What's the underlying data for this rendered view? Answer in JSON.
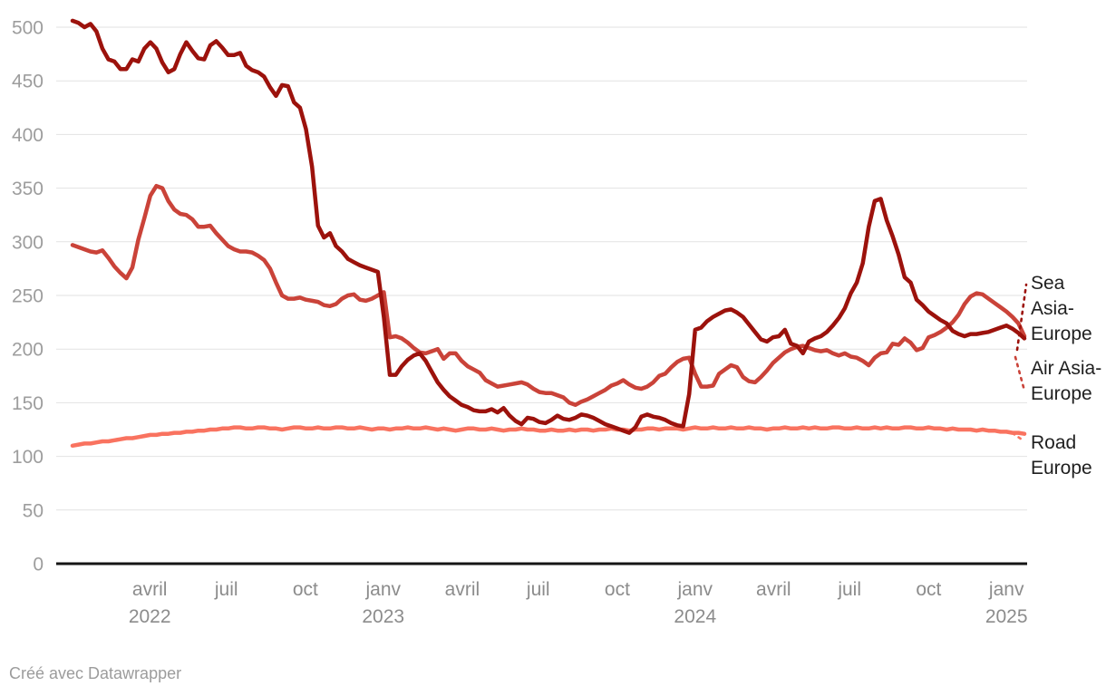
{
  "chart_data": {
    "type": "line",
    "title": "",
    "grid": true,
    "legend_position": "right-edge-direct-labels",
    "y_axis": {
      "range": [
        0,
        500
      ],
      "ticks": [
        0,
        50,
        100,
        150,
        200,
        250,
        300,
        350,
        400,
        450,
        500
      ]
    },
    "x_axis": {
      "range_note": "weekly data, Jan 2022 - Jan/Feb 2025",
      "ticks": [
        {
          "label": "avril",
          "year": "2022",
          "i": 12.9
        },
        {
          "label": "juil",
          "year": "",
          "i": 25.7
        },
        {
          "label": "oct",
          "year": "",
          "i": 38.9
        },
        {
          "label": "janv",
          "year": "2023",
          "i": 51.9
        },
        {
          "label": "avril",
          "year": "",
          "i": 65.1
        },
        {
          "label": "juil",
          "year": "",
          "i": 77.8
        },
        {
          "label": "oct",
          "year": "",
          "i": 91.0
        },
        {
          "label": "janv",
          "year": "2024",
          "i": 104.0
        },
        {
          "label": "avril",
          "year": "",
          "i": 117.1
        },
        {
          "label": "juil",
          "year": "",
          "i": 129.8
        },
        {
          "label": "oct",
          "year": "",
          "i": 143.0
        },
        {
          "label": "janv",
          "year": "2025",
          "i": 156.0
        }
      ]
    },
    "series": [
      {
        "name": "Road Europe",
        "color": "#f97360",
        "values": [
          110,
          111,
          112,
          112,
          113,
          114,
          114,
          115,
          116,
          117,
          117,
          118,
          119,
          120,
          120,
          121,
          121,
          122,
          122,
          123,
          123,
          124,
          124,
          125,
          125,
          126,
          126,
          127,
          127,
          126,
          126,
          127,
          127,
          126,
          126,
          125,
          126,
          127,
          127,
          126,
          126,
          127,
          126,
          126,
          127,
          127,
          126,
          126,
          127,
          126,
          125,
          126,
          126,
          125,
          126,
          126,
          127,
          126,
          126,
          127,
          126,
          125,
          126,
          125,
          124,
          125,
          126,
          126,
          125,
          125,
          126,
          125,
          124,
          125,
          125,
          126,
          125,
          125,
          124,
          124,
          125,
          124,
          124,
          125,
          124,
          125,
          125,
          124,
          125,
          125,
          126,
          125,
          125,
          124,
          125,
          125,
          126,
          126,
          125,
          126,
          126,
          126,
          125,
          126,
          127,
          126,
          126,
          127,
          126,
          126,
          127,
          126,
          126,
          127,
          126,
          126,
          125,
          126,
          126,
          127,
          126,
          126,
          127,
          126,
          127,
          126,
          126,
          127,
          127,
          126,
          126,
          127,
          126,
          126,
          127,
          126,
          127,
          126,
          126,
          127,
          127,
          126,
          126,
          127,
          126,
          126,
          125,
          126,
          125,
          125,
          125,
          124,
          125,
          124,
          124,
          123,
          123,
          122,
          122,
          121
        ]
      },
      {
        "name": "Air Asia-Europe",
        "color": "#ca4339",
        "values": [
          297,
          295,
          293,
          291,
          290,
          292,
          285,
          277,
          271,
          266,
          276,
          302,
          322,
          343,
          352,
          350,
          338,
          330,
          326,
          325,
          321,
          314,
          314,
          315,
          308,
          302,
          296,
          293,
          291,
          291,
          290,
          287,
          283,
          275,
          262,
          250,
          247,
          247,
          248,
          246,
          245,
          244,
          241,
          240,
          242,
          247,
          250,
          251,
          246,
          245,
          247,
          250,
          253,
          211,
          212,
          210,
          206,
          201,
          197,
          196,
          198,
          200,
          191,
          196,
          196,
          189,
          184,
          181,
          178,
          171,
          168,
          165,
          166,
          167,
          168,
          169,
          167,
          163,
          160,
          159,
          159,
          157,
          155,
          150,
          148,
          151,
          153,
          156,
          159,
          162,
          166,
          168,
          171,
          167,
          164,
          163,
          165,
          169,
          175,
          177,
          183,
          188,
          191,
          192,
          177,
          165,
          165,
          166,
          177,
          181,
          185,
          183,
          174,
          170,
          169,
          174,
          180,
          187,
          192,
          197,
          200,
          202,
          203,
          201,
          199,
          198,
          199,
          196,
          194,
          196,
          193,
          192,
          189,
          185,
          192,
          196,
          197,
          205,
          204,
          210,
          206,
          199,
          201,
          211,
          213,
          216,
          220,
          225,
          232,
          242,
          249,
          252,
          251,
          247,
          243,
          239,
          235,
          230,
          224,
          212
        ]
      },
      {
        "name": "Sea Asia-Europe",
        "color": "#9c120c",
        "values": [
          506,
          504,
          500,
          503,
          496,
          480,
          470,
          468,
          461,
          461,
          470,
          468,
          480,
          486,
          480,
          467,
          458,
          461,
          475,
          486,
          478,
          471,
          470,
          483,
          487,
          481,
          474,
          474,
          476,
          464,
          460,
          458,
          454,
          444,
          436,
          446,
          445,
          430,
          425,
          405,
          370,
          315,
          304,
          308,
          296,
          291,
          284,
          281,
          278,
          276,
          274,
          272,
          230,
          176,
          176,
          184,
          190,
          194,
          196,
          189,
          179,
          169,
          162,
          156,
          152,
          148,
          146,
          143,
          142,
          142,
          144,
          141,
          145,
          138,
          133,
          130,
          136,
          135,
          132,
          131,
          134,
          138,
          135,
          134,
          136,
          139,
          138,
          136,
          133,
          130,
          128,
          126,
          124,
          122,
          127,
          137,
          139,
          137,
          136,
          134,
          131,
          129,
          128,
          158,
          218,
          220,
          226,
          230,
          233,
          236,
          237,
          234,
          230,
          223,
          216,
          209,
          207,
          211,
          212,
          218,
          205,
          203,
          196,
          207,
          210,
          212,
          216,
          222,
          229,
          238,
          252,
          262,
          280,
          314,
          338,
          340,
          320,
          305,
          288,
          267,
          262,
          246,
          241,
          235,
          231,
          227,
          224,
          217,
          214,
          212,
          214,
          214,
          215,
          216,
          218,
          220,
          222,
          219,
          215,
          210
        ]
      }
    ]
  },
  "legend": {
    "sea": "Sea Asia-Europe",
    "air": "Air Asia-Europe",
    "road": "Road Europe"
  },
  "footer": {
    "credit": "Créé avec Datawrapper"
  },
  "colors": {
    "sea_line": "#9c120c",
    "air_line": "#ca4339",
    "road_line": "#f97360",
    "gridline": "#e2e2e2",
    "baseline": "#151515",
    "y_tick_label": "#9d9d9d",
    "x_tick_label": "#8c8c8c",
    "legend_text": "#1f1f1f",
    "footer_text": "#9c9c9c"
  }
}
